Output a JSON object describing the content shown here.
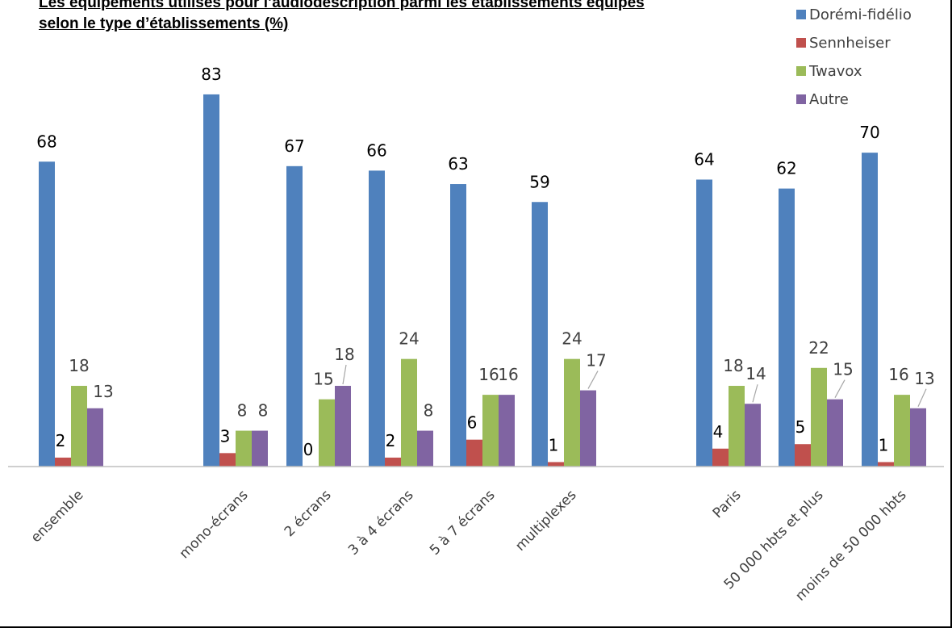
{
  "chart_data": {
    "type": "bar",
    "title_line1": "Les équipements utilisés pour l’audiodescription parmi les établissements équipés",
    "title_line2": "selon le type d’établissements (%)",
    "categories": [
      "ensemble",
      "mono-écrans",
      "2 écrans",
      "3 à 4 écrans",
      "5 à 7 écrans",
      "multiplexes",
      "Paris",
      "50 000 hbts et plus",
      "moins de 50 000 hbts"
    ],
    "series": [
      {
        "name": "Dorémi-fidélio",
        "color": "#4F81BD",
        "values": [
          68,
          83,
          67,
          66,
          63,
          59,
          64,
          62,
          70
        ]
      },
      {
        "name": "Sennheiser",
        "color": "#C0504D",
        "values": [
          2,
          3,
          0,
          2,
          6,
          1,
          4,
          5,
          1
        ]
      },
      {
        "name": "Twavox",
        "color": "#9BBB59",
        "values": [
          18,
          8,
          15,
          24,
          16,
          24,
          18,
          22,
          16
        ]
      },
      {
        "name": "Autre",
        "color": "#8064A2",
        "values": [
          13,
          8,
          18,
          8,
          16,
          17,
          14,
          15,
          13
        ]
      }
    ],
    "ylim": [
      0,
      100
    ],
    "xlabel": "",
    "ylabel": "",
    "grid": false,
    "legend_position": "top-right"
  }
}
